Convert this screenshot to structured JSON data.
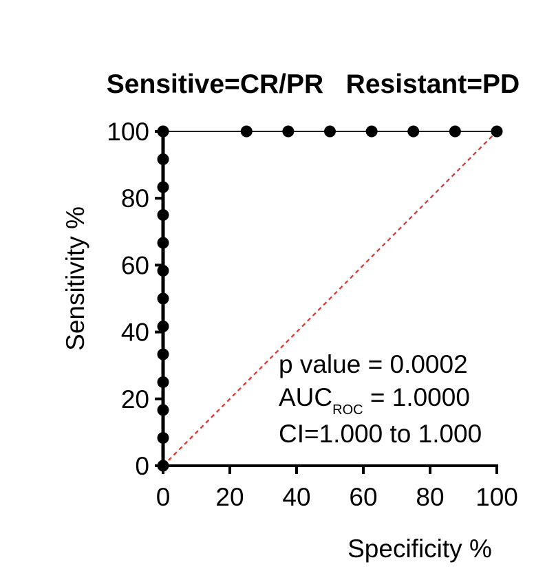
{
  "chart_data": {
    "type": "line",
    "title": "Sensitive=CR/PR   Resistant=PD",
    "xlabel": "Specificity %",
    "ylabel": "Sensitivity %",
    "xlim": [
      0,
      100
    ],
    "ylim": [
      0,
      100
    ],
    "xticks": [
      "0",
      "20",
      "40",
      "60",
      "80",
      "100"
    ],
    "yticks": [
      "0",
      "20",
      "40",
      "60",
      "80",
      "100"
    ],
    "grid": false,
    "series": [
      {
        "x": [
          0,
          0,
          0,
          0,
          0,
          0,
          0,
          0,
          0,
          0,
          0,
          0,
          0,
          0,
          25,
          37.5,
          50,
          62.5,
          75,
          87.5,
          100
        ],
        "y": [
          0,
          8.33,
          16.67,
          25,
          33.33,
          41.67,
          50,
          58.33,
          66.67,
          75,
          83.33,
          91.67,
          100,
          100,
          100,
          100,
          100,
          100,
          100,
          100,
          100
        ],
        "color": "#000000"
      }
    ],
    "reference_line": {
      "x": [
        0,
        100
      ],
      "y": [
        0,
        100
      ],
      "color": "#e03030",
      "style": "dashed"
    },
    "annotations": {
      "pvalue": "p value = 0.0002",
      "auc_main": "AUC",
      "auc_sub": "ROC",
      "auc_value": " = 1.0000",
      "ci": "CI=1.000 to 1.000"
    }
  }
}
